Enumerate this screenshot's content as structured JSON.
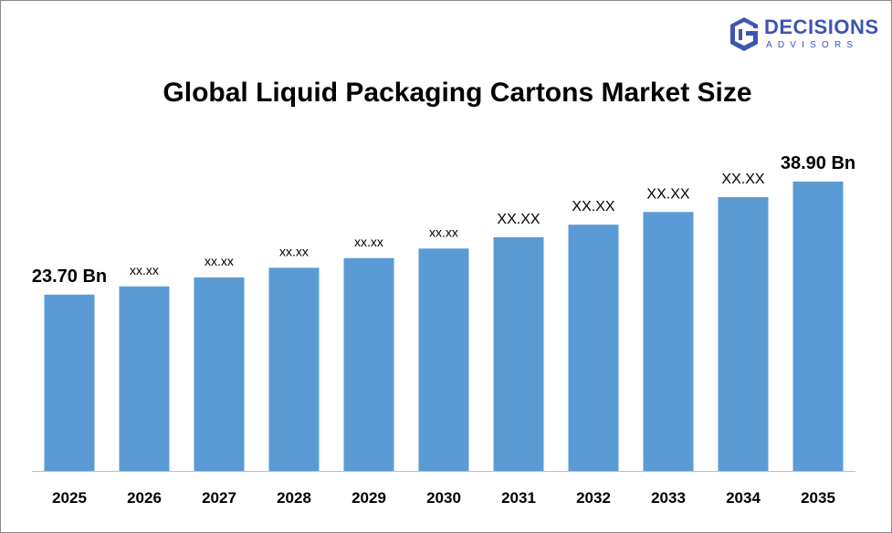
{
  "brand": {
    "primary": "DECISIONS",
    "secondary": "ADVISORS",
    "color": "#3c55b4"
  },
  "chart_data": {
    "type": "bar",
    "title": "Global Liquid Packaging Cartons Market Size",
    "xlabel": "",
    "ylabel": "",
    "categories": [
      "2025",
      "2026",
      "2027",
      "2028",
      "2029",
      "2030",
      "2031",
      "2032",
      "2033",
      "2034",
      "2035"
    ],
    "values": [
      23.7,
      24.8,
      26.0,
      27.3,
      28.6,
      29.9,
      31.4,
      33.1,
      34.8,
      36.8,
      38.9
    ],
    "data_labels": [
      "23.70 Bn",
      "xx.xx",
      "xx.xx",
      "xx.xx",
      "xx.xx",
      "xx.xx",
      "XX.XX",
      "XX.XX",
      "XX.XX",
      "XX.XX",
      "38.90 Bn"
    ],
    "ylim": [
      0,
      46
    ],
    "bar_color": "#5b9bd5",
    "grid": false,
    "legend": "none"
  }
}
